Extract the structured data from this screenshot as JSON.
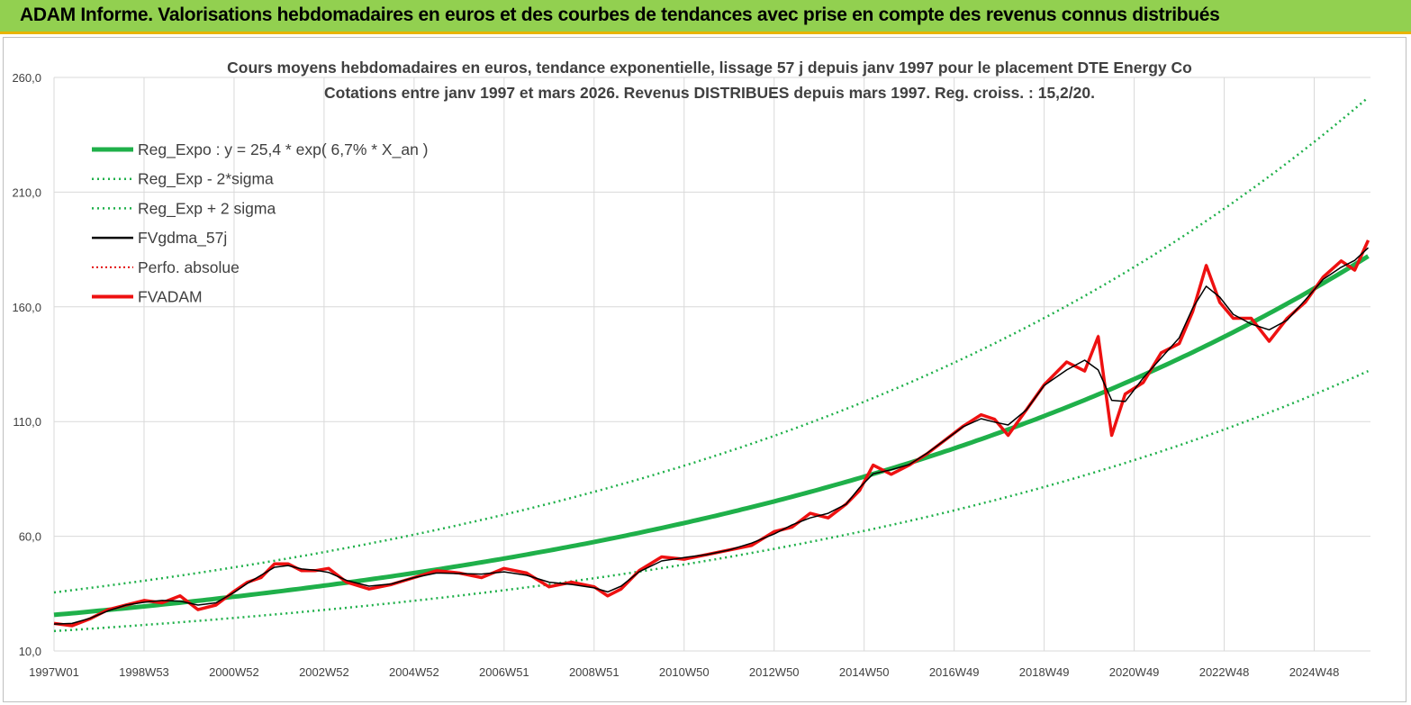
{
  "banner": {
    "title": "ADAM Informe. Valorisations hebdomadaires en euros et des courbes de tendances avec prise en compte des revenus connus distribués"
  },
  "colors": {
    "banner_bg": "#92d050",
    "banner_border": "#e8b400",
    "reg_expo": "#1fb04a",
    "sigma_bands": "#1fb04a",
    "fvgdma": "#000000",
    "perfo": "#e00000",
    "fvadam": "#ee1111",
    "grid": "#d9d9d9"
  },
  "chart_data": {
    "type": "line",
    "title": "Cours moyens hebdomadaires en euros, tendance exponentielle, lissage 57 j depuis janv 1997 pour le placement DTE Energy Co",
    "subtitle": "Cotations entre janv 1997 et mars 2026. Revenus DISTRIBUES depuis mars 1997. Reg. croiss. : 15,2/20.",
    "xlabel": "",
    "ylabel": "",
    "ylim": [
      10,
      260
    ],
    "y_ticks": [
      "10,0",
      "60,0",
      "110,0",
      "160,0",
      "210,0",
      "260,0"
    ],
    "y_tick_values": [
      10,
      60,
      110,
      160,
      210,
      260
    ],
    "x_ticks": [
      "1997W01",
      "1998W53",
      "2000W52",
      "2002W52",
      "2004W52",
      "2006W51",
      "2008W51",
      "2010W50",
      "2012W50",
      "2014W50",
      "2016W49",
      "2018W49",
      "2020W49",
      "2022W48",
      "2024W48"
    ],
    "x_tick_years": [
      1997.0,
      1999.0,
      2001.0,
      2003.0,
      2005.0,
      2007.0,
      2009.0,
      2011.0,
      2013.0,
      2015.0,
      2017.0,
      2019.0,
      2021.0,
      2023.0,
      2025.0
    ],
    "xlim": [
      1997.0,
      2026.25
    ],
    "grid": true,
    "legend_position": "top-left",
    "regression": {
      "a": 25.4,
      "rate_pct": 6.7
    },
    "series": [
      {
        "name": "Reg_Expo : y = 25,4 * exp( 6,7% *  X_an )",
        "style": "thick-solid",
        "color": "#1fb04a"
      },
      {
        "name": "Reg_Exp - 2*sigma",
        "style": "dotted",
        "color": "#1fb04a",
        "factor": 0.725
      },
      {
        "name": "Reg_Exp + 2 sigma",
        "style": "dotted",
        "color": "#1fb04a",
        "factor": 1.38
      },
      {
        "name": "FVgdma_57j",
        "style": "solid",
        "color": "#000000"
      },
      {
        "name": "Perfo. absolue",
        "style": "dotted",
        "color": "#e00000"
      },
      {
        "name": "FVADAM",
        "style": "thick-solid",
        "color": "#ee1111"
      }
    ],
    "fvadam_points": {
      "x": [
        1997.0,
        1997.4,
        1997.8,
        1998.2,
        1998.6,
        1999.0,
        1999.4,
        1999.8,
        2000.2,
        2000.6,
        2001.0,
        2001.3,
        2001.6,
        2001.9,
        2002.2,
        2002.5,
        2002.8,
        2003.1,
        2003.5,
        2004.0,
        2004.5,
        2005.0,
        2005.5,
        2006.0,
        2006.5,
        2007.0,
        2007.5,
        2008.0,
        2008.5,
        2009.0,
        2009.3,
        2009.6,
        2010.0,
        2010.5,
        2011.0,
        2011.5,
        2012.0,
        2012.5,
        2013.0,
        2013.4,
        2013.8,
        2014.2,
        2014.6,
        2014.9,
        2015.2,
        2015.6,
        2016.0,
        2016.4,
        2016.8,
        2017.2,
        2017.6,
        2017.9,
        2018.2,
        2018.6,
        2019.0,
        2019.5,
        2019.9,
        2020.2,
        2020.5,
        2020.8,
        2021.2,
        2021.6,
        2022.0,
        2022.3,
        2022.6,
        2022.9,
        2023.2,
        2023.6,
        2024.0,
        2024.4,
        2024.8,
        2025.2,
        2025.6,
        2025.9,
        2026.2
      ],
      "y": [
        22,
        21,
        24,
        28,
        30,
        32,
        31,
        34,
        28,
        30,
        36,
        40,
        42,
        48,
        48,
        45,
        45,
        46,
        40,
        37,
        39,
        42,
        45,
        44,
        42,
        46,
        44,
        38,
        40,
        38,
        34,
        37,
        45,
        51,
        50,
        52,
        54,
        56,
        62,
        64,
        70,
        68,
        74,
        80,
        91,
        87,
        91,
        96,
        102,
        108,
        113,
        111,
        104,
        115,
        126,
        136,
        132,
        147,
        104,
        122,
        127,
        140,
        144,
        158,
        178,
        162,
        155,
        155,
        145,
        155,
        162,
        173,
        180,
        176,
        189
      ]
    }
  }
}
